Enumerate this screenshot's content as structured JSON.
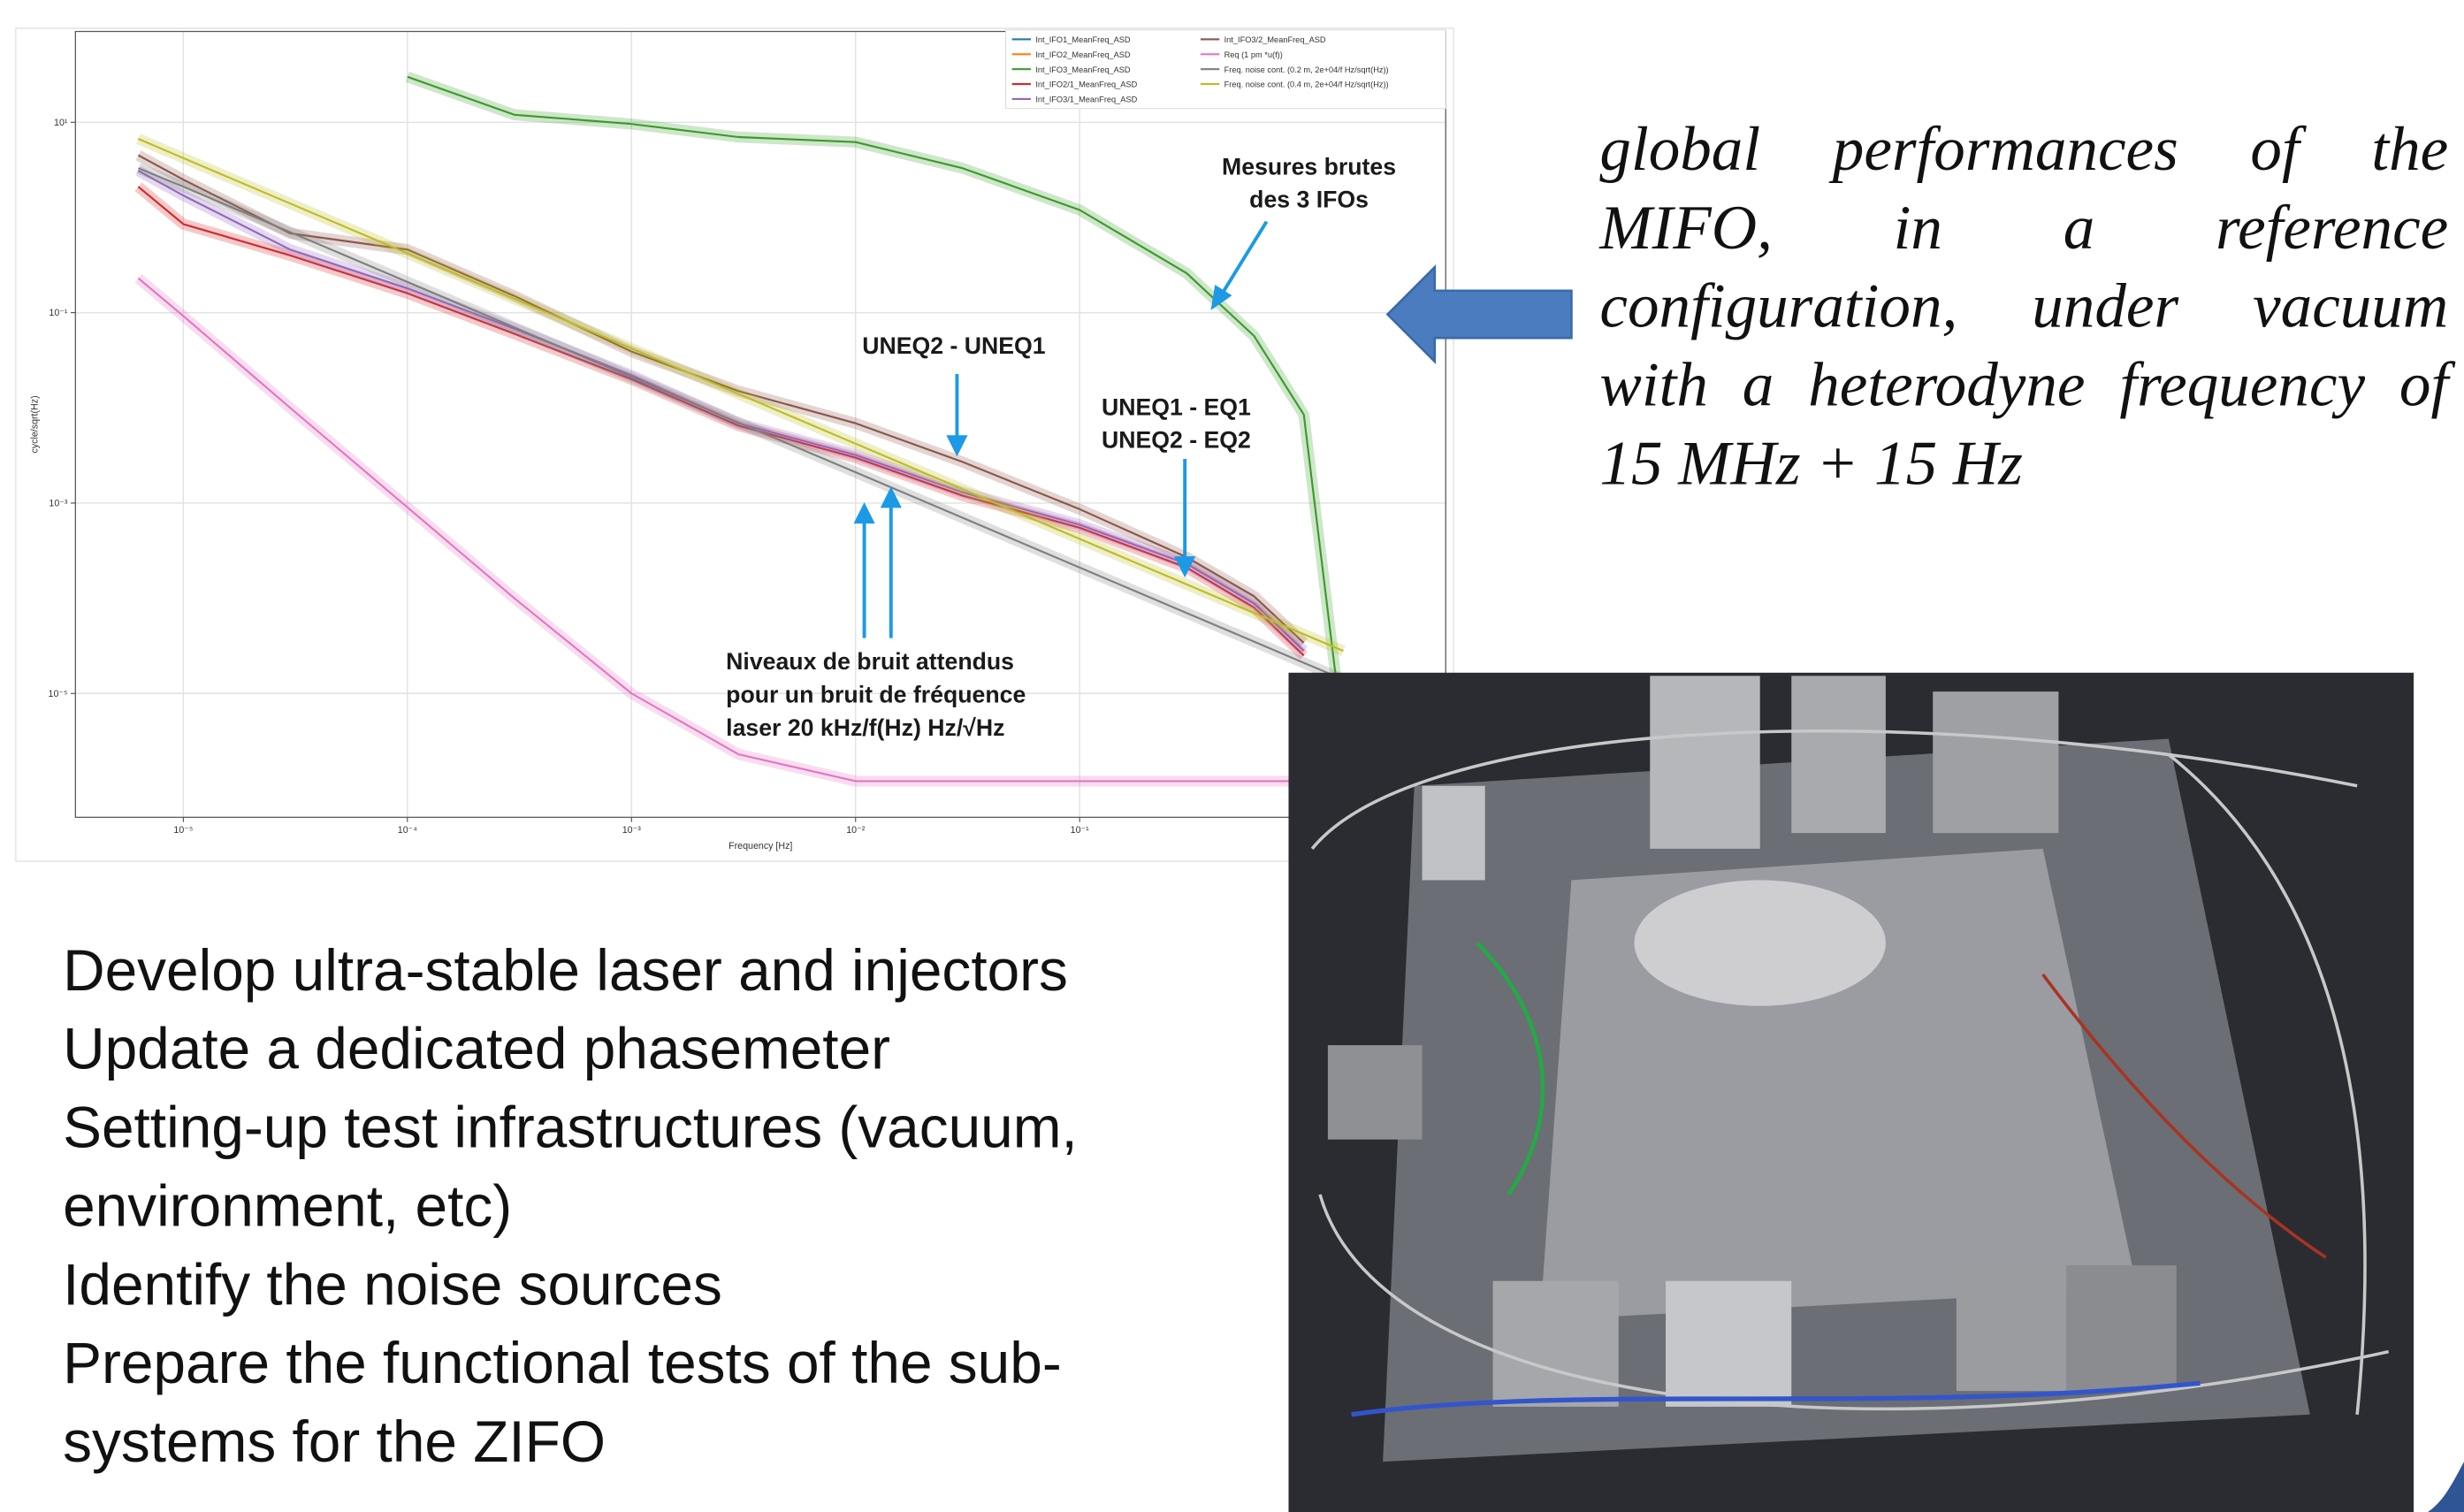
{
  "chart_data": {
    "type": "line",
    "xlabel": "Frequency [Hz]",
    "ylabel": "cycle/sqrt(Hz)",
    "xscale": "log",
    "yscale": "log",
    "grid": true,
    "legend": "upper right",
    "xlim": [
      3.3e-06,
      4.3
    ],
    "ylim": [
      5e-07,
      90
    ],
    "xticks": [
      {
        "value": 1e-05,
        "label": "10⁻⁵"
      },
      {
        "value": 0.0001,
        "label": "10⁻⁴"
      },
      {
        "value": 0.001,
        "label": "10⁻³"
      },
      {
        "value": 0.01,
        "label": "10⁻²"
      },
      {
        "value": 0.1,
        "label": "10⁻¹"
      }
    ],
    "yticks": [
      {
        "value": 10,
        "label": "10¹"
      },
      {
        "value": 0.1,
        "label": "10⁻¹"
      },
      {
        "value": 0.001,
        "label": "10⁻³"
      },
      {
        "value": 1e-05,
        "label": "10⁻⁵"
      }
    ],
    "x": [
      6.3e-06,
      1e-05,
      3e-05,
      0.0001,
      0.0003,
      0.001,
      0.003,
      0.01,
      0.03,
      0.1,
      0.3,
      0.6,
      1,
      1.5
    ],
    "series": [
      {
        "name": "Int_IFO1_MeanFreq_ASD",
        "color": "#1f77b4",
        "values": [
          null,
          null,
          null,
          null,
          null,
          null,
          null,
          null,
          null,
          null,
          null,
          null,
          null,
          null
        ]
      },
      {
        "name": "Int_IFO2_MeanFreq_ASD",
        "color": "#ff7f0e",
        "values": [
          null,
          null,
          null,
          null,
          null,
          null,
          null,
          null,
          null,
          null,
          null,
          null,
          null,
          null
        ]
      },
      {
        "name": "Int_IFO3_MeanFreq_ASD",
        "color": "#3a9a2a",
        "values": [
          null,
          null,
          null,
          30,
          12,
          9.6,
          7,
          6.2,
          3.3,
          1.2,
          0.26,
          0.057,
          0.0085,
          3.4e-06
        ]
      },
      {
        "name": "Int_IFO2/1_MeanFreq_ASD",
        "color": "#d62728",
        "values": [
          2.1,
          0.85,
          0.4,
          0.16,
          0.06,
          0.02,
          0.0065,
          0.003,
          0.0012,
          0.00055,
          0.00021,
          8e-05,
          2.5e-05,
          null
        ]
      },
      {
        "name": "Int_IFO3/1_MeanFreq_ASD",
        "color": "#9467bd",
        "values": [
          3.1,
          1.7,
          0.46,
          0.18,
          0.068,
          0.022,
          0.0069,
          0.0032,
          0.0013,
          0.00059,
          0.00023,
          8.8e-05,
          2.8e-05,
          null
        ]
      },
      {
        "name": "Int_IFO3/2_MeanFreq_ASD",
        "color": "#8c564b",
        "values": [
          4.5,
          2.5,
          0.68,
          0.46,
          0.15,
          0.039,
          0.015,
          0.0069,
          0.0027,
          0.00086,
          0.00027,
          0.000105,
          3.4e-05,
          null
        ]
      },
      {
        "name": "Req (1 pm *u(f))",
        "color": "#e377c2",
        "values": [
          0.23,
          0.092,
          0.01,
          0.0009,
          0.0001,
          1e-05,
          2.3e-06,
          1.2e-06,
          1.2e-06,
          1.2e-06,
          1.2e-06,
          1.2e-06,
          1.2e-06,
          1.2e-06
        ]
      },
      {
        "name": "Freq. noise cont. (0.2 m, 2e+04/f Hz/sqrt(Hz))",
        "color": "#7f7f7f",
        "values": [
          3.3,
          2.1,
          0.7,
          0.21,
          0.07,
          0.021,
          0.007,
          0.0021,
          0.0007,
          0.00021,
          7e-05,
          3.5e-05,
          2.1e-05,
          1.4e-05
        ]
      },
      {
        "name": "Freq. noise cont. (0.4 m, 2e+04/f Hz/sqrt(Hz))",
        "color": "#bcbd22",
        "values": [
          6.7,
          4.2,
          1.4,
          0.42,
          0.14,
          0.042,
          0.014,
          0.0042,
          0.0014,
          0.00042,
          0.00014,
          7e-05,
          4.2e-05,
          2.8e-05
        ]
      }
    ],
    "annotations": [
      {
        "lines": [
          "Mesures brutes",
          "des 3 IFOs"
        ]
      },
      {
        "lines": [
          "UNEQ2 - UNEQ1"
        ]
      },
      {
        "lines": [
          "UNEQ1 - EQ1",
          "UNEQ2 - EQ2"
        ]
      },
      {
        "lines": [
          "Niveaux de bruit attendus",
          "pour un bruit de fréquence",
          "laser 20 kHz/f(Hz) Hz/√Hz"
        ]
      }
    ]
  },
  "caption": {
    "lines": [
      "global performances of the",
      "MIFO, in a reference",
      "configuration, under vacuum",
      "with a heterodyne frequency of",
      "15 MHz + 15 Hz"
    ]
  },
  "bullets": {
    "lines": [
      "Develop ultra-stable laser and injectors",
      "Update a dedicated phasemeter",
      "Setting-up test infrastructures (vacuum,",
      "environment, etc)",
      "Identify the noise sources",
      "Prepare the functional tests of the sub-",
      "systems for the ZIFO"
    ]
  }
}
